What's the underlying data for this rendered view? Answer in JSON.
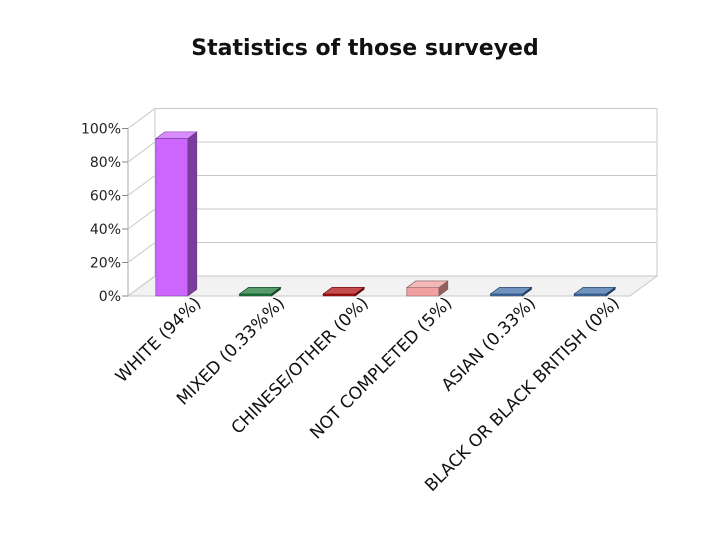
{
  "chart_data": {
    "type": "bar",
    "title": "Statistics of those surveyed",
    "categories": [
      "WHITE (94%)",
      "MIXED (0.33%%)",
      "CHINESE/OTHER (0%)",
      "NOT COMPLETED (5%)",
      "ASIAN (0.33%)",
      "BLACK OR BLACK BRITISH (0%)"
    ],
    "values": [
      94,
      0.33,
      0,
      5,
      0.33,
      0
    ],
    "colors": [
      "#cc66ff",
      "#1f7a3a",
      "#b01010",
      "#f2a0a0",
      "#3f6fa8",
      "#3f6fa8"
    ],
    "ytick_labels": [
      "0%",
      "20%",
      "40%",
      "60%",
      "80%",
      "100%"
    ],
    "ylim": [
      0,
      100
    ],
    "grid": true,
    "three_d": true
  }
}
